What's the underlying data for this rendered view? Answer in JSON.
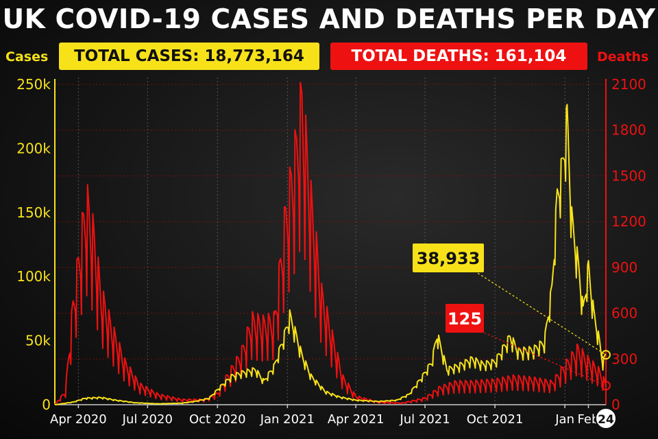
{
  "title": "UK COVID-19 CASES AND DEATHS PER DAY",
  "banners": {
    "total_cases": "TOTAL CASES: 18,773,164",
    "total_deaths": "TOTAL DEATHS: 161,104"
  },
  "colors": {
    "cases": "#f7e21a",
    "deaths": "#ee1111",
    "background": "#111111",
    "text": "#ffffff"
  },
  "chart_data": {
    "type": "line",
    "title": "UK COVID-19 CASES AND DEATHS PER DAY",
    "x_range": [
      "2020-03-01",
      "2022-02-24"
    ],
    "y_left": {
      "label": "Cases",
      "range": [
        0,
        250000
      ],
      "ticks": [
        0,
        50000,
        100000,
        150000,
        200000,
        250000
      ],
      "tick_labels": [
        "0",
        "50k",
        "100k",
        "150k",
        "200k",
        "250k"
      ]
    },
    "y_right": {
      "label": "Deaths",
      "range": [
        0,
        2100
      ],
      "ticks": [
        0,
        300,
        600,
        900,
        1200,
        1500,
        1800,
        2100
      ],
      "tick_labels": [
        "0",
        "300",
        "600",
        "900",
        "1200",
        "1500",
        "1800",
        "2100"
      ]
    },
    "x_ticks": [
      {
        "date": "2020-04-01",
        "label": "Apr 2020"
      },
      {
        "date": "2020-07-01",
        "label": "Jul 2020"
      },
      {
        "date": "2020-10-01",
        "label": "Oct 2020"
      },
      {
        "date": "2021-01-01",
        "label": "Jan 2021"
      },
      {
        "date": "2021-04-01",
        "label": "Apr 2021"
      },
      {
        "date": "2021-07-01",
        "label": "Jul 2021"
      },
      {
        "date": "2021-10-01",
        "label": "Oct 2021"
      },
      {
        "date": "2022-01-01",
        "label": "Jan"
      },
      {
        "date": "2022-02-01",
        "label": "Feb"
      }
    ],
    "end_label": "24",
    "grid": true,
    "series": [
      {
        "name": "Cases",
        "axis": "left",
        "points": [
          [
            "2020-03-01",
            0
          ],
          [
            "2020-03-25",
            2000
          ],
          [
            "2020-04-10",
            5000
          ],
          [
            "2020-05-01",
            5500
          ],
          [
            "2020-05-20",
            3500
          ],
          [
            "2020-06-15",
            1500
          ],
          [
            "2020-07-15",
            700
          ],
          [
            "2020-08-15",
            1200
          ],
          [
            "2020-09-01",
            2500
          ],
          [
            "2020-09-20",
            5000
          ],
          [
            "2020-10-05",
            14000
          ],
          [
            "2020-10-20",
            22000
          ],
          [
            "2020-11-05",
            25000
          ],
          [
            "2020-11-20",
            27000
          ],
          [
            "2020-12-01",
            18000
          ],
          [
            "2020-12-15",
            30000
          ],
          [
            "2020-12-29",
            55000
          ],
          [
            "2021-01-04",
            68000
          ],
          [
            "2021-01-10",
            58000
          ],
          [
            "2021-01-20",
            38000
          ],
          [
            "2021-02-01",
            22000
          ],
          [
            "2021-02-20",
            10000
          ],
          [
            "2021-03-10",
            6000
          ],
          [
            "2021-04-01",
            3500
          ],
          [
            "2021-05-01",
            2500
          ],
          [
            "2021-05-25",
            3500
          ],
          [
            "2021-06-10",
            8000
          ],
          [
            "2021-06-28",
            22000
          ],
          [
            "2021-07-10",
            33000
          ],
          [
            "2021-07-17",
            54000
          ],
          [
            "2021-07-30",
            27000
          ],
          [
            "2021-08-15",
            30000
          ],
          [
            "2021-09-01",
            35000
          ],
          [
            "2021-09-15",
            31000
          ],
          [
            "2021-10-01",
            33000
          ],
          [
            "2021-10-21",
            52000
          ],
          [
            "2021-11-01",
            41000
          ],
          [
            "2021-11-20",
            42000
          ],
          [
            "2021-12-05",
            48000
          ],
          [
            "2021-12-15",
            89000
          ],
          [
            "2021-12-22",
            160000
          ],
          [
            "2021-12-29",
            183000
          ],
          [
            "2022-01-04",
            219000
          ],
          [
            "2022-01-10",
            142000
          ],
          [
            "2022-01-20",
            101000
          ],
          [
            "2022-01-25",
            72000
          ],
          [
            "2022-02-01",
            105000
          ],
          [
            "2022-02-08",
            70000
          ],
          [
            "2022-02-15",
            50000
          ],
          [
            "2022-02-20",
            32000
          ],
          [
            "2022-02-24",
            38933
          ]
        ]
      },
      {
        "name": "Deaths",
        "axis": "right",
        "points": [
          [
            "2020-03-01",
            0
          ],
          [
            "2020-03-15",
            80
          ],
          [
            "2020-03-25",
            600
          ],
          [
            "2020-04-08",
            1100
          ],
          [
            "2020-04-12",
            1200
          ],
          [
            "2020-04-21",
            1000
          ],
          [
            "2020-05-01",
            650
          ],
          [
            "2020-05-15",
            450
          ],
          [
            "2020-06-01",
            250
          ],
          [
            "2020-06-20",
            120
          ],
          [
            "2020-07-15",
            60
          ],
          [
            "2020-08-15",
            30
          ],
          [
            "2020-09-15",
            30
          ],
          [
            "2020-10-01",
            70
          ],
          [
            "2020-10-15",
            180
          ],
          [
            "2020-11-01",
            300
          ],
          [
            "2020-11-15",
            500
          ],
          [
            "2020-11-30",
            480
          ],
          [
            "2020-12-15",
            500
          ],
          [
            "2020-12-29",
            1100
          ],
          [
            "2021-01-12",
            1500
          ],
          [
            "2021-01-20",
            1800
          ],
          [
            "2021-02-01",
            1200
          ],
          [
            "2021-02-15",
            650
          ],
          [
            "2021-03-01",
            400
          ],
          [
            "2021-03-15",
            160
          ],
          [
            "2021-04-01",
            50
          ],
          [
            "2021-05-01",
            15
          ],
          [
            "2021-06-01",
            10
          ],
          [
            "2021-07-01",
            40
          ],
          [
            "2021-07-20",
            100
          ],
          [
            "2021-08-10",
            130
          ],
          [
            "2021-09-01",
            130
          ],
          [
            "2021-10-01",
            140
          ],
          [
            "2021-10-25",
            160
          ],
          [
            "2021-11-20",
            150
          ],
          [
            "2021-12-15",
            130
          ],
          [
            "2022-01-04",
            250
          ],
          [
            "2022-01-18",
            330
          ],
          [
            "2022-02-01",
            260
          ],
          [
            "2022-02-15",
            200
          ],
          [
            "2022-02-24",
            125
          ]
        ]
      }
    ],
    "annotations": [
      {
        "text": "38,933",
        "series": "Cases",
        "date": "2022-02-24",
        "value": 38933
      },
      {
        "text": "125",
        "series": "Deaths",
        "date": "2022-02-24",
        "value": 125
      }
    ]
  }
}
